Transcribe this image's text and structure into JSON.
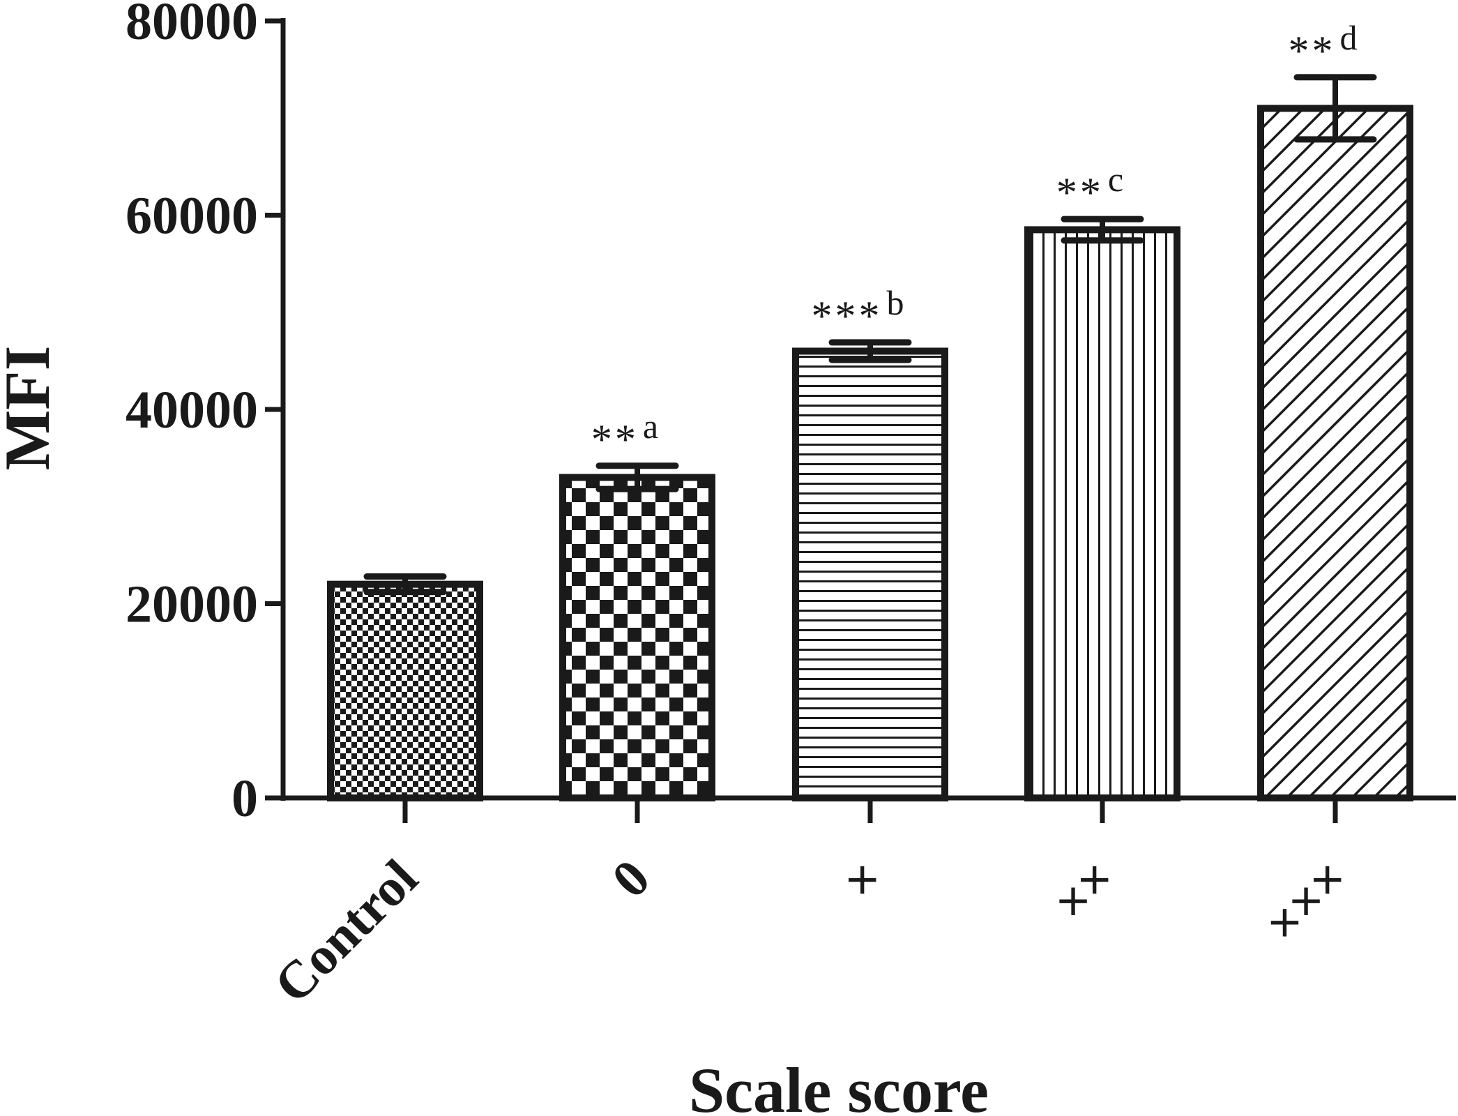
{
  "chart_data": {
    "type": "bar",
    "xlabel": "Scale score",
    "ylabel": "MFI",
    "ylim": [
      0,
      80000
    ],
    "yticks": [
      0,
      20000,
      40000,
      60000,
      80000
    ],
    "ytick_labels": [
      "0",
      "20000",
      "40000",
      "60000",
      "80000"
    ],
    "categories": [
      "Control",
      "0",
      "×",
      "××",
      "×××"
    ],
    "values": [
      22000,
      33000,
      46000,
      58500,
      71000
    ],
    "errors": [
      800,
      1200,
      900,
      1100,
      3200
    ],
    "annotations": [
      "",
      "**a",
      "***b",
      "**c",
      "**d"
    ],
    "patterns": [
      "fine-checker",
      "coarse-checker",
      "horizontal-lines",
      "vertical-lines",
      "diagonal-lines"
    ],
    "grid": false,
    "legend": "none",
    "bar_color": "#ffffff",
    "edge_color": "#1a1a1a"
  }
}
